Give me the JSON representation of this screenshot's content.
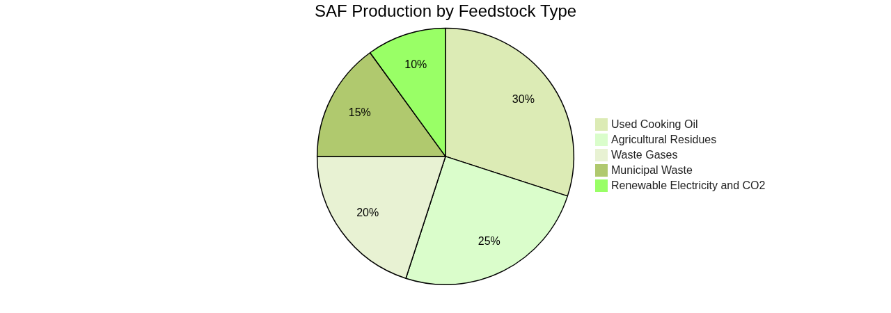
{
  "chart_data": {
    "type": "pie",
    "title": "SAF Production by Feedstock Type",
    "categories": [
      "Used Cooking Oil",
      "Agricultural Residues",
      "Waste Gases",
      "Municipal Waste",
      "Renewable Electricity and CO2"
    ],
    "values": [
      30,
      25,
      20,
      15,
      10
    ],
    "value_labels": [
      "30%",
      "25%",
      "20%",
      "15%",
      "10%"
    ],
    "colors": [
      "#dcebb5",
      "#dafdcb",
      "#e8f2d3",
      "#b0c96e",
      "#99ff66"
    ],
    "data_labels": true,
    "legend": "right"
  }
}
